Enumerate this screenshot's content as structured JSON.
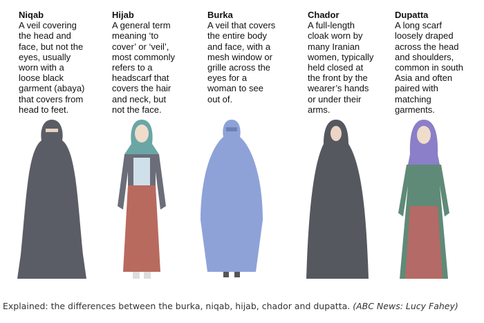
{
  "garments": [
    {
      "name": "Niqab",
      "lines": [
        "A veil covering",
        "the head and",
        "face, but not the",
        "eyes, usually",
        "worn with a",
        "loose black",
        "garment (abaya)",
        "that covers from",
        "head to feet."
      ],
      "color": "#5b5d66"
    },
    {
      "name": "Hijab",
      "lines": [
        "A general term",
        "meaning ‘to",
        "cover’ or ‘veil’,",
        "most commonly",
        "refers to a",
        "headscarf that",
        "covers the hair",
        "and neck, but",
        "not the face."
      ],
      "color": "#6aa6a6"
    },
    {
      "name": "Burka",
      "lines": [
        "A veil that covers",
        "the entire body",
        "and face, with a",
        "mesh window or",
        "grille across the",
        "eyes for a",
        "woman to see",
        "out of."
      ],
      "color": "#8ea2d8"
    },
    {
      "name": "Chador",
      "lines": [
        "A full-length",
        "cloak worn by",
        "many Iranian",
        "women, typically",
        "held closed at",
        "the front by the",
        "wearer’s hands",
        "or under their",
        "arms."
      ],
      "color": "#55585f"
    },
    {
      "name": "Dupatta",
      "lines": [
        "A long scarf",
        "loosely draped",
        "across the head",
        "and shoulders,",
        "common in south",
        "Asia and often",
        "paired with",
        "matching",
        "garments."
      ],
      "color": "#8a7fc8"
    }
  ],
  "caption": {
    "text": "Explained: the differences between the burka, niqab, hijab, chador and dupatta.",
    "source": "(ABC News: Lucy Fahey)"
  }
}
